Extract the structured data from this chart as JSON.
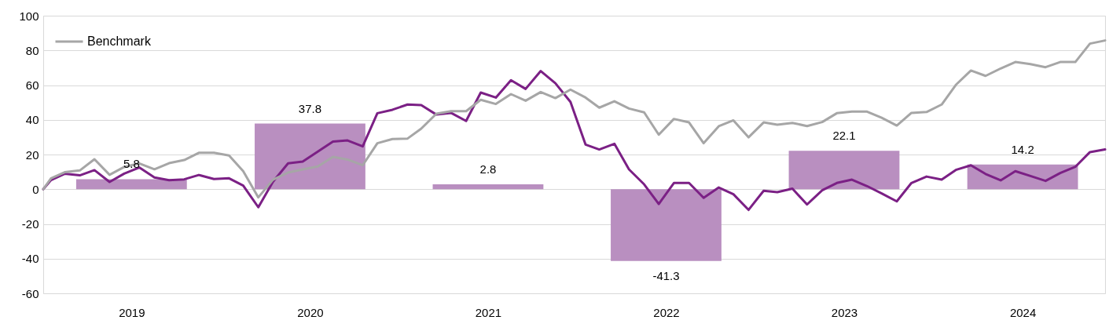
{
  "chart_data": {
    "type": "line",
    "xlim": [
      "2019-01-15",
      "2024-12-31"
    ],
    "xticks": [
      {
        "value": "2019-07-15",
        "label": "2019"
      },
      {
        "value": "2020-07-15",
        "label": "2020"
      },
      {
        "value": "2021-07-15",
        "label": "2021"
      },
      {
        "value": "2022-07-15",
        "label": "2022"
      },
      {
        "value": "2023-07-15",
        "label": "2023"
      },
      {
        "value": "2024-07-15",
        "label": "2024"
      }
    ],
    "ylim": [
      -60,
      100
    ],
    "yticks": [
      -60,
      -40,
      -20,
      0,
      20,
      40,
      60,
      80,
      100
    ],
    "grid": "y",
    "legend": "top left",
    "series": [
      {
        "type": "bar",
        "color": "#b98fc0",
        "x": [
          "2019-07-15",
          "2020-07-15",
          "2021-07-15",
          "2022-07-15",
          "2023-07-15",
          "2024-07-15"
        ],
        "values": [
          5.8,
          37.8,
          2.8,
          -41.3,
          22.1,
          14.2
        ],
        "value_labels": [
          "5.8",
          "37.8",
          "2.8",
          "-41.3",
          "22.1",
          "14.2"
        ]
      },
      {
        "color": "#7b2085",
        "x": [
          "2019-01-15",
          "2019-01-31",
          "2019-02-28",
          "2019-03-31",
          "2019-04-30",
          "2019-05-31",
          "2019-06-30",
          "2019-07-31",
          "2019-08-31",
          "2019-09-30",
          "2019-10-31",
          "2019-11-30",
          "2019-12-31",
          "2020-01-31",
          "2020-02-29",
          "2020-03-31",
          "2020-04-30",
          "2020-05-31",
          "2020-06-30",
          "2020-07-31",
          "2020-08-31",
          "2020-09-30",
          "2020-10-31",
          "2020-11-30",
          "2020-12-31",
          "2021-01-31",
          "2021-02-28",
          "2021-03-31",
          "2021-04-30",
          "2021-05-31",
          "2021-06-30",
          "2021-07-31",
          "2021-08-31",
          "2021-09-30",
          "2021-10-31",
          "2021-11-30",
          "2021-12-31",
          "2022-01-31",
          "2022-02-28",
          "2022-03-31",
          "2022-04-30",
          "2022-05-31",
          "2022-06-30",
          "2022-07-31",
          "2022-08-31",
          "2022-09-30",
          "2022-10-31",
          "2022-11-30",
          "2022-12-31",
          "2023-01-31",
          "2023-02-28",
          "2023-03-31",
          "2023-04-30",
          "2023-05-31",
          "2023-06-30",
          "2023-07-31",
          "2023-08-31",
          "2023-09-30",
          "2023-10-31",
          "2023-11-30",
          "2023-12-31",
          "2024-01-31",
          "2024-02-29",
          "2024-03-31",
          "2024-04-30",
          "2024-05-31",
          "2024-06-30",
          "2024-07-31",
          "2024-08-31",
          "2024-09-30",
          "2024-10-31",
          "2024-11-30",
          "2024-12-31"
        ],
        "values": [
          0,
          5.3,
          8.9,
          8.0,
          11.0,
          4.2,
          9.0,
          12.5,
          6.8,
          5.2,
          5.7,
          8.2,
          5.9,
          6.3,
          2.1,
          -10.4,
          4.3,
          14.9,
          15.9,
          21.7,
          27.5,
          28.1,
          24.7,
          43.8,
          45.8,
          48.8,
          48.5,
          43.0,
          44.0,
          39.3,
          55.7,
          52.8,
          62.8,
          57.8,
          68.1,
          61.1,
          50.3,
          25.7,
          22.9,
          26.2,
          11.4,
          2.8,
          -8.5,
          3.6,
          3.6,
          -5.0,
          1.0,
          -2.9,
          -11.9,
          -0.9,
          -1.7,
          0.3,
          -8.8,
          -0.6,
          3.6,
          5.5,
          1.8,
          -2.4,
          -7.0,
          3.6,
          7.3,
          5.5,
          11.1,
          13.8,
          8.8,
          5.1,
          10.4,
          7.6,
          4.8,
          9.3,
          12.9,
          21.4,
          22.9
        ]
      },
      {
        "name": "Benchmark",
        "color": "#a6a6a6",
        "x": [
          "2019-01-15",
          "2019-01-31",
          "2019-02-28",
          "2019-03-31",
          "2019-04-30",
          "2019-05-31",
          "2019-06-30",
          "2019-07-31",
          "2019-08-31",
          "2019-09-30",
          "2019-10-31",
          "2019-11-30",
          "2019-12-31",
          "2020-01-31",
          "2020-02-29",
          "2020-03-31",
          "2020-04-30",
          "2020-05-31",
          "2020-06-30",
          "2020-07-31",
          "2020-08-31",
          "2020-09-30",
          "2020-10-31",
          "2020-11-30",
          "2020-12-31",
          "2021-01-31",
          "2021-02-28",
          "2021-03-31",
          "2021-04-30",
          "2021-05-31",
          "2021-06-30",
          "2021-07-31",
          "2021-08-31",
          "2021-09-30",
          "2021-10-31",
          "2021-11-30",
          "2021-12-31",
          "2022-01-31",
          "2022-02-28",
          "2022-03-31",
          "2022-04-30",
          "2022-05-31",
          "2022-06-30",
          "2022-07-31",
          "2022-08-31",
          "2022-09-30",
          "2022-10-31",
          "2022-11-30",
          "2022-12-31",
          "2023-01-31",
          "2023-02-28",
          "2023-03-31",
          "2023-04-30",
          "2023-05-31",
          "2023-06-30",
          "2023-07-31",
          "2023-08-31",
          "2023-09-30",
          "2023-10-31",
          "2023-11-30",
          "2023-12-31",
          "2024-01-31",
          "2024-02-29",
          "2024-03-31",
          "2024-04-30",
          "2024-05-31",
          "2024-06-30",
          "2024-07-31",
          "2024-08-31",
          "2024-09-30",
          "2024-10-31",
          "2024-11-30",
          "2024-12-31"
        ],
        "values": [
          0,
          6.3,
          9.8,
          10.8,
          17.3,
          8.3,
          12.8,
          14.9,
          11.5,
          15.0,
          16.8,
          21.0,
          21.0,
          19.4,
          10.4,
          -4.7,
          5.5,
          9.6,
          11.4,
          13.1,
          18.6,
          17.1,
          13.8,
          26.5,
          28.9,
          29.2,
          34.9,
          43.5,
          45.0,
          45.0,
          51.5,
          49.1,
          54.8,
          51.0,
          56.0,
          52.5,
          57.4,
          52.8,
          47.0,
          50.7,
          46.5,
          44.3,
          31.4,
          40.5,
          38.5,
          26.5,
          36.3,
          39.7,
          29.9,
          38.5,
          37.2,
          38.2,
          36.4,
          38.7,
          43.8,
          44.7,
          44.7,
          41.2,
          36.7,
          44.0,
          44.5,
          48.8,
          60.1,
          68.4,
          65.3,
          69.6,
          73.3,
          72.1,
          70.3,
          73.3,
          73.3,
          83.9,
          85.7
        ]
      }
    ]
  }
}
